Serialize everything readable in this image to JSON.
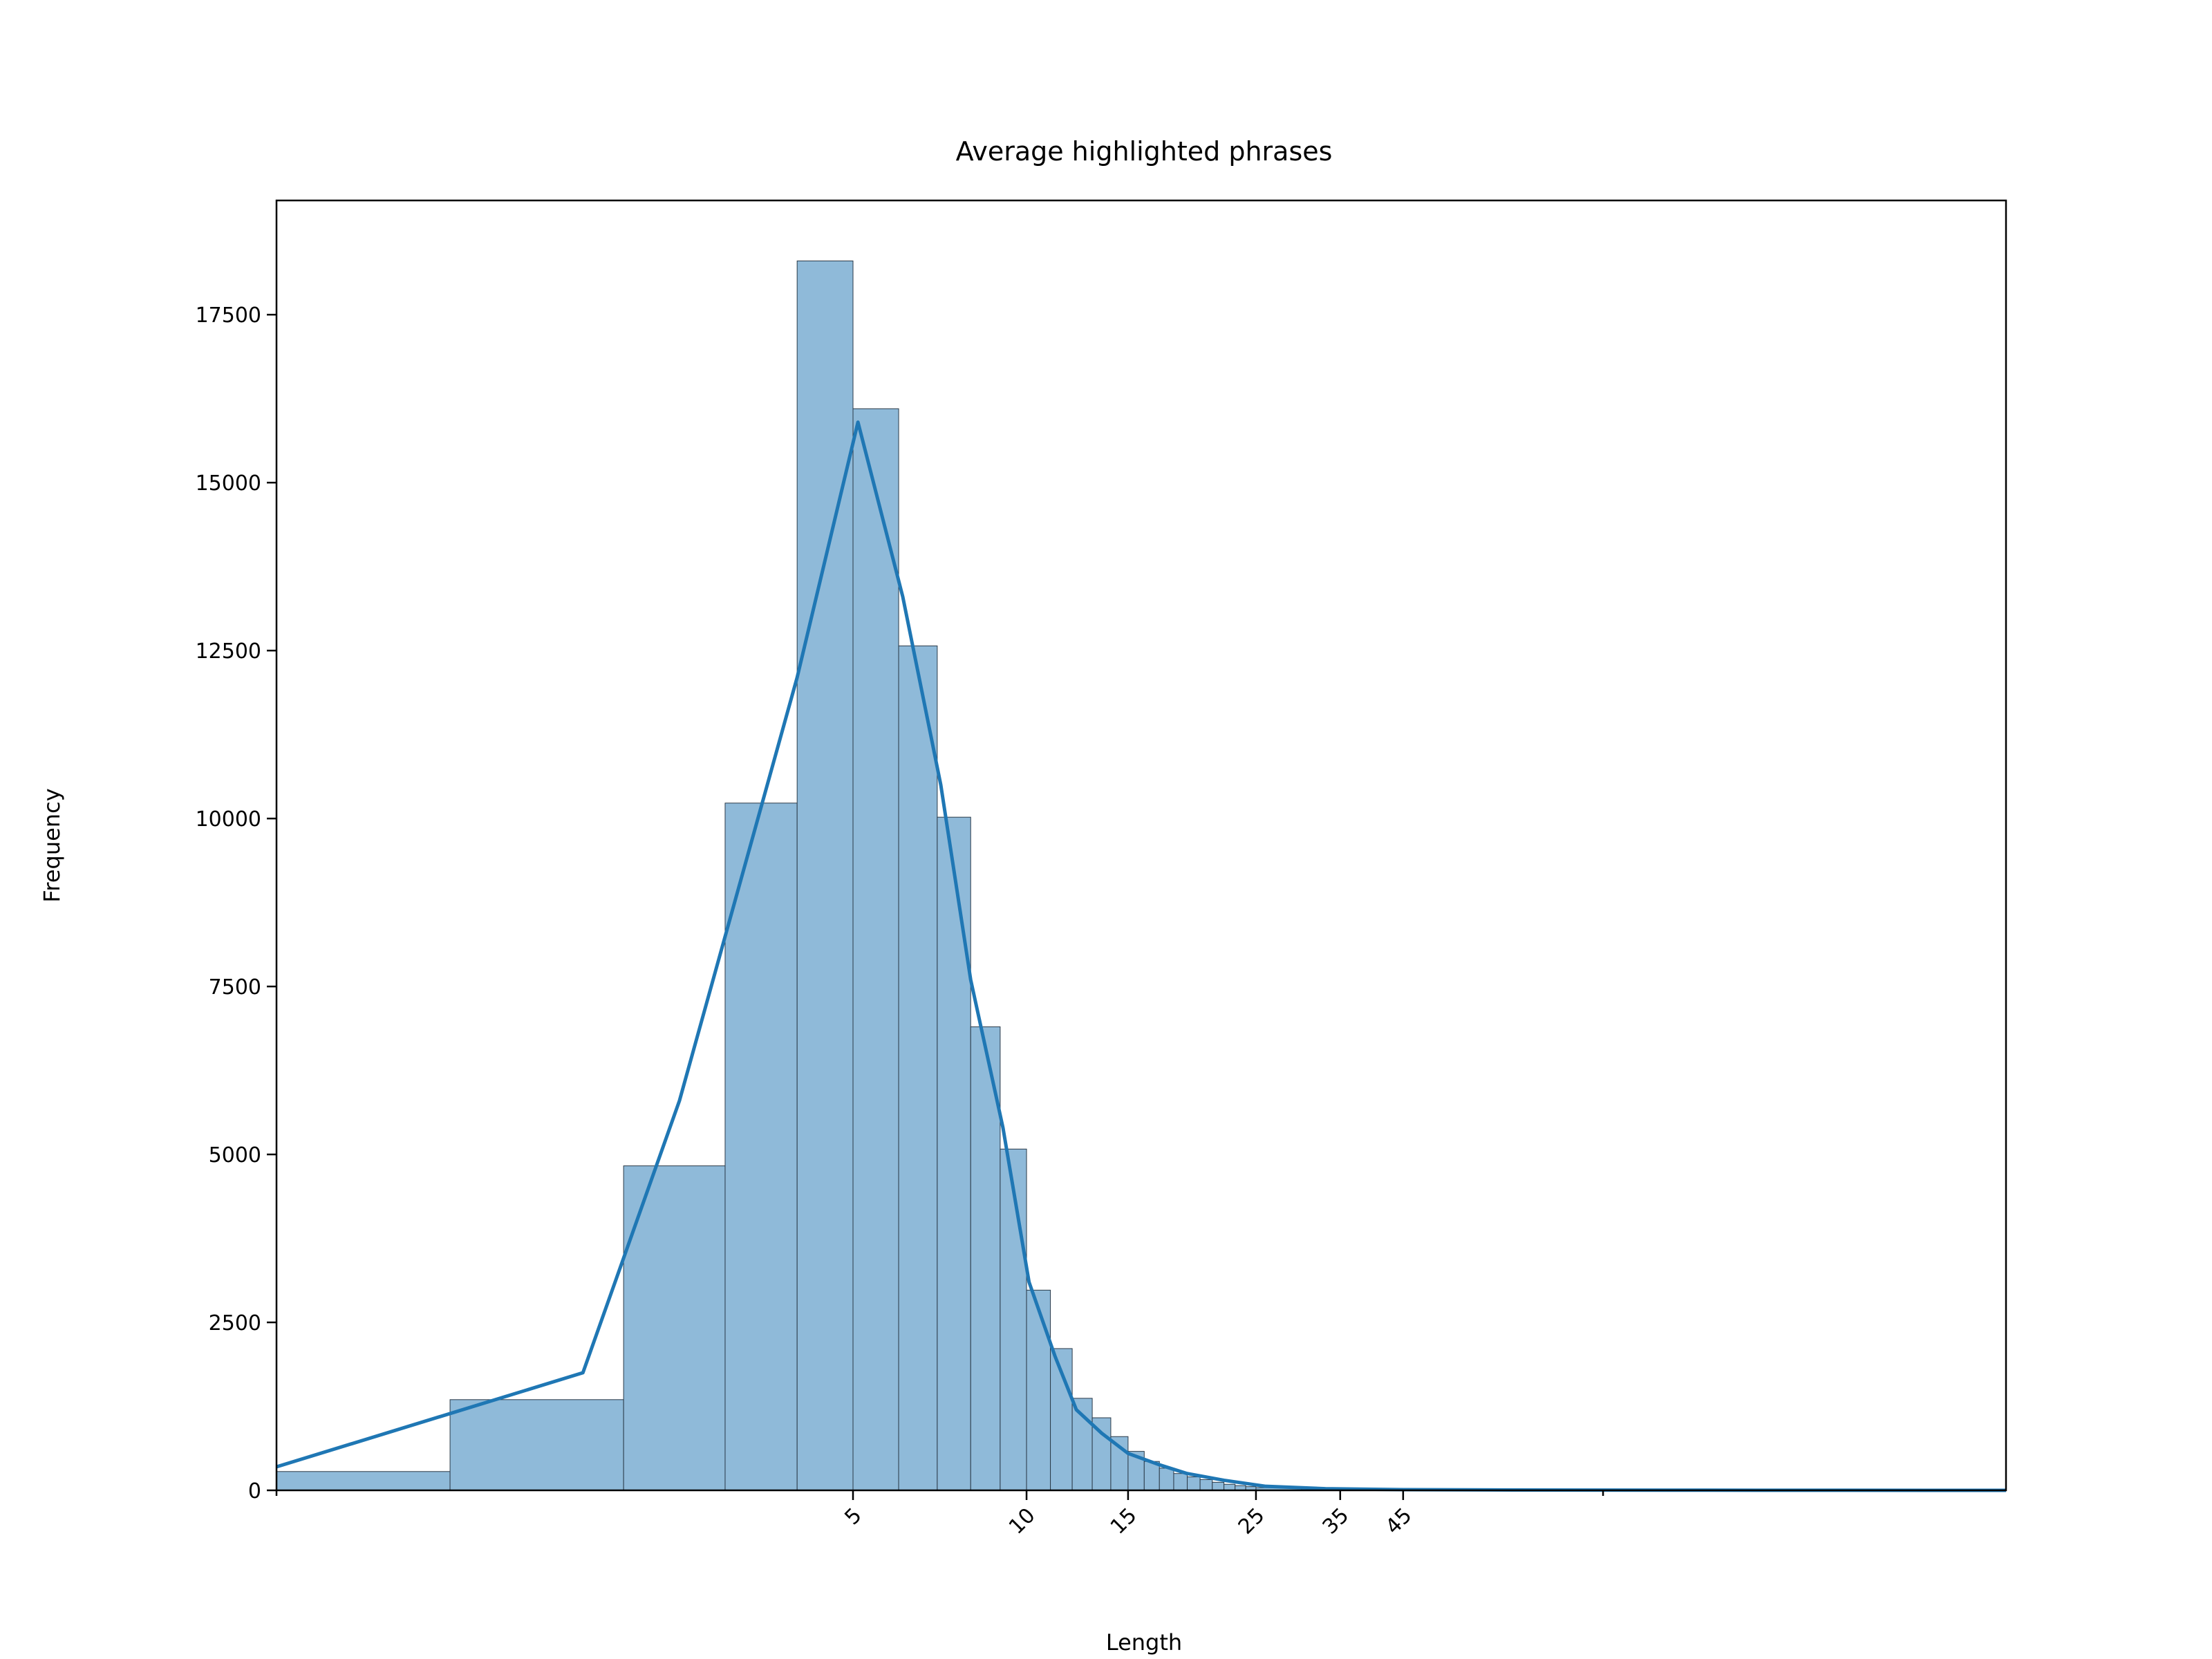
{
  "chart_data": {
    "type": "bar",
    "title": "Average highlighted phrases",
    "xlabel": "Length",
    "ylabel": "Frequency",
    "xscale": "log",
    "xlim": [
      0.5,
      500
    ],
    "ylim": [
      0,
      19200
    ],
    "x_ticks": [
      5,
      10,
      15,
      25,
      35,
      45
    ],
    "y_ticks": [
      0,
      2500,
      5000,
      7500,
      10000,
      12500,
      15000,
      17500
    ],
    "grid": false,
    "legend": "none",
    "colors": {
      "bar_fill": "#8fbad9",
      "bar_edge": "#2b3a48",
      "kde_line": "#1f77b4"
    },
    "bins": [
      {
        "x0": 0.5,
        "x1": 1,
        "count": 280
      },
      {
        "x0": 1,
        "x2": null,
        "x1": 2,
        "count": 1350
      },
      {
        "x0": 2,
        "x1": 3,
        "count": 4830
      },
      {
        "x0": 3,
        "x1": 4,
        "count": 10230
      },
      {
        "x0": 4,
        "x1": 5,
        "count": 18300
      },
      {
        "x0": 5,
        "x1": 6,
        "count": 16100
      },
      {
        "x0": 6,
        "x1": 7,
        "count": 12570
      },
      {
        "x0": 7,
        "x1": 8,
        "count": 10020
      },
      {
        "x0": 8,
        "x1": 9,
        "count": 6900
      },
      {
        "x0": 9,
        "x1": 10,
        "count": 5080
      },
      {
        "x0": 10,
        "x1": 11,
        "count": 2980
      },
      {
        "x0": 11,
        "x1": 12,
        "count": 2110
      },
      {
        "x0": 12,
        "x1": 13,
        "count": 1370
      },
      {
        "x0": 13,
        "x1": 14,
        "count": 1080
      },
      {
        "x0": 14,
        "x1": 15,
        "count": 800
      },
      {
        "x0": 15,
        "x1": 16,
        "count": 580
      },
      {
        "x0": 16,
        "x1": 17,
        "count": 430
      },
      {
        "x0": 17,
        "x1": 18,
        "count": 330
      },
      {
        "x0": 18,
        "x1": 19,
        "count": 250
      },
      {
        "x0": 19,
        "x1": 20,
        "count": 200
      },
      {
        "x0": 20,
        "x1": 21,
        "count": 160
      },
      {
        "x0": 21,
        "x1": 22,
        "count": 120
      },
      {
        "x0": 22,
        "x1": 23,
        "count": 90
      },
      {
        "x0": 23,
        "x1": 24,
        "count": 70
      },
      {
        "x0": 24,
        "x1": 25,
        "count": 55
      },
      {
        "x0": 25,
        "x1": 30,
        "count": 40
      },
      {
        "x0": 30,
        "x1": 40,
        "count": 20
      },
      {
        "x0": 40,
        "x1": 60,
        "count": 10
      },
      {
        "x0": 60,
        "x1": 500,
        "count": 5
      }
    ],
    "kde": {
      "x": [
        0.5,
        1.7,
        2.5,
        4.0,
        5.1,
        6.1,
        7.1,
        8.0,
        9.1,
        10.1,
        11.2,
        12.2,
        13.5,
        15.0,
        17.0,
        19.0,
        22.0,
        26.0,
        33.0,
        45.0,
        70.0,
        150.0,
        500.0
      ],
      "y": [
        350,
        1750,
        5800,
        12100,
        15900,
        13300,
        10500,
        7600,
        5400,
        3100,
        2000,
        1200,
        850,
        550,
        380,
        250,
        150,
        60,
        25,
        10,
        5,
        2,
        0
      ]
    }
  }
}
